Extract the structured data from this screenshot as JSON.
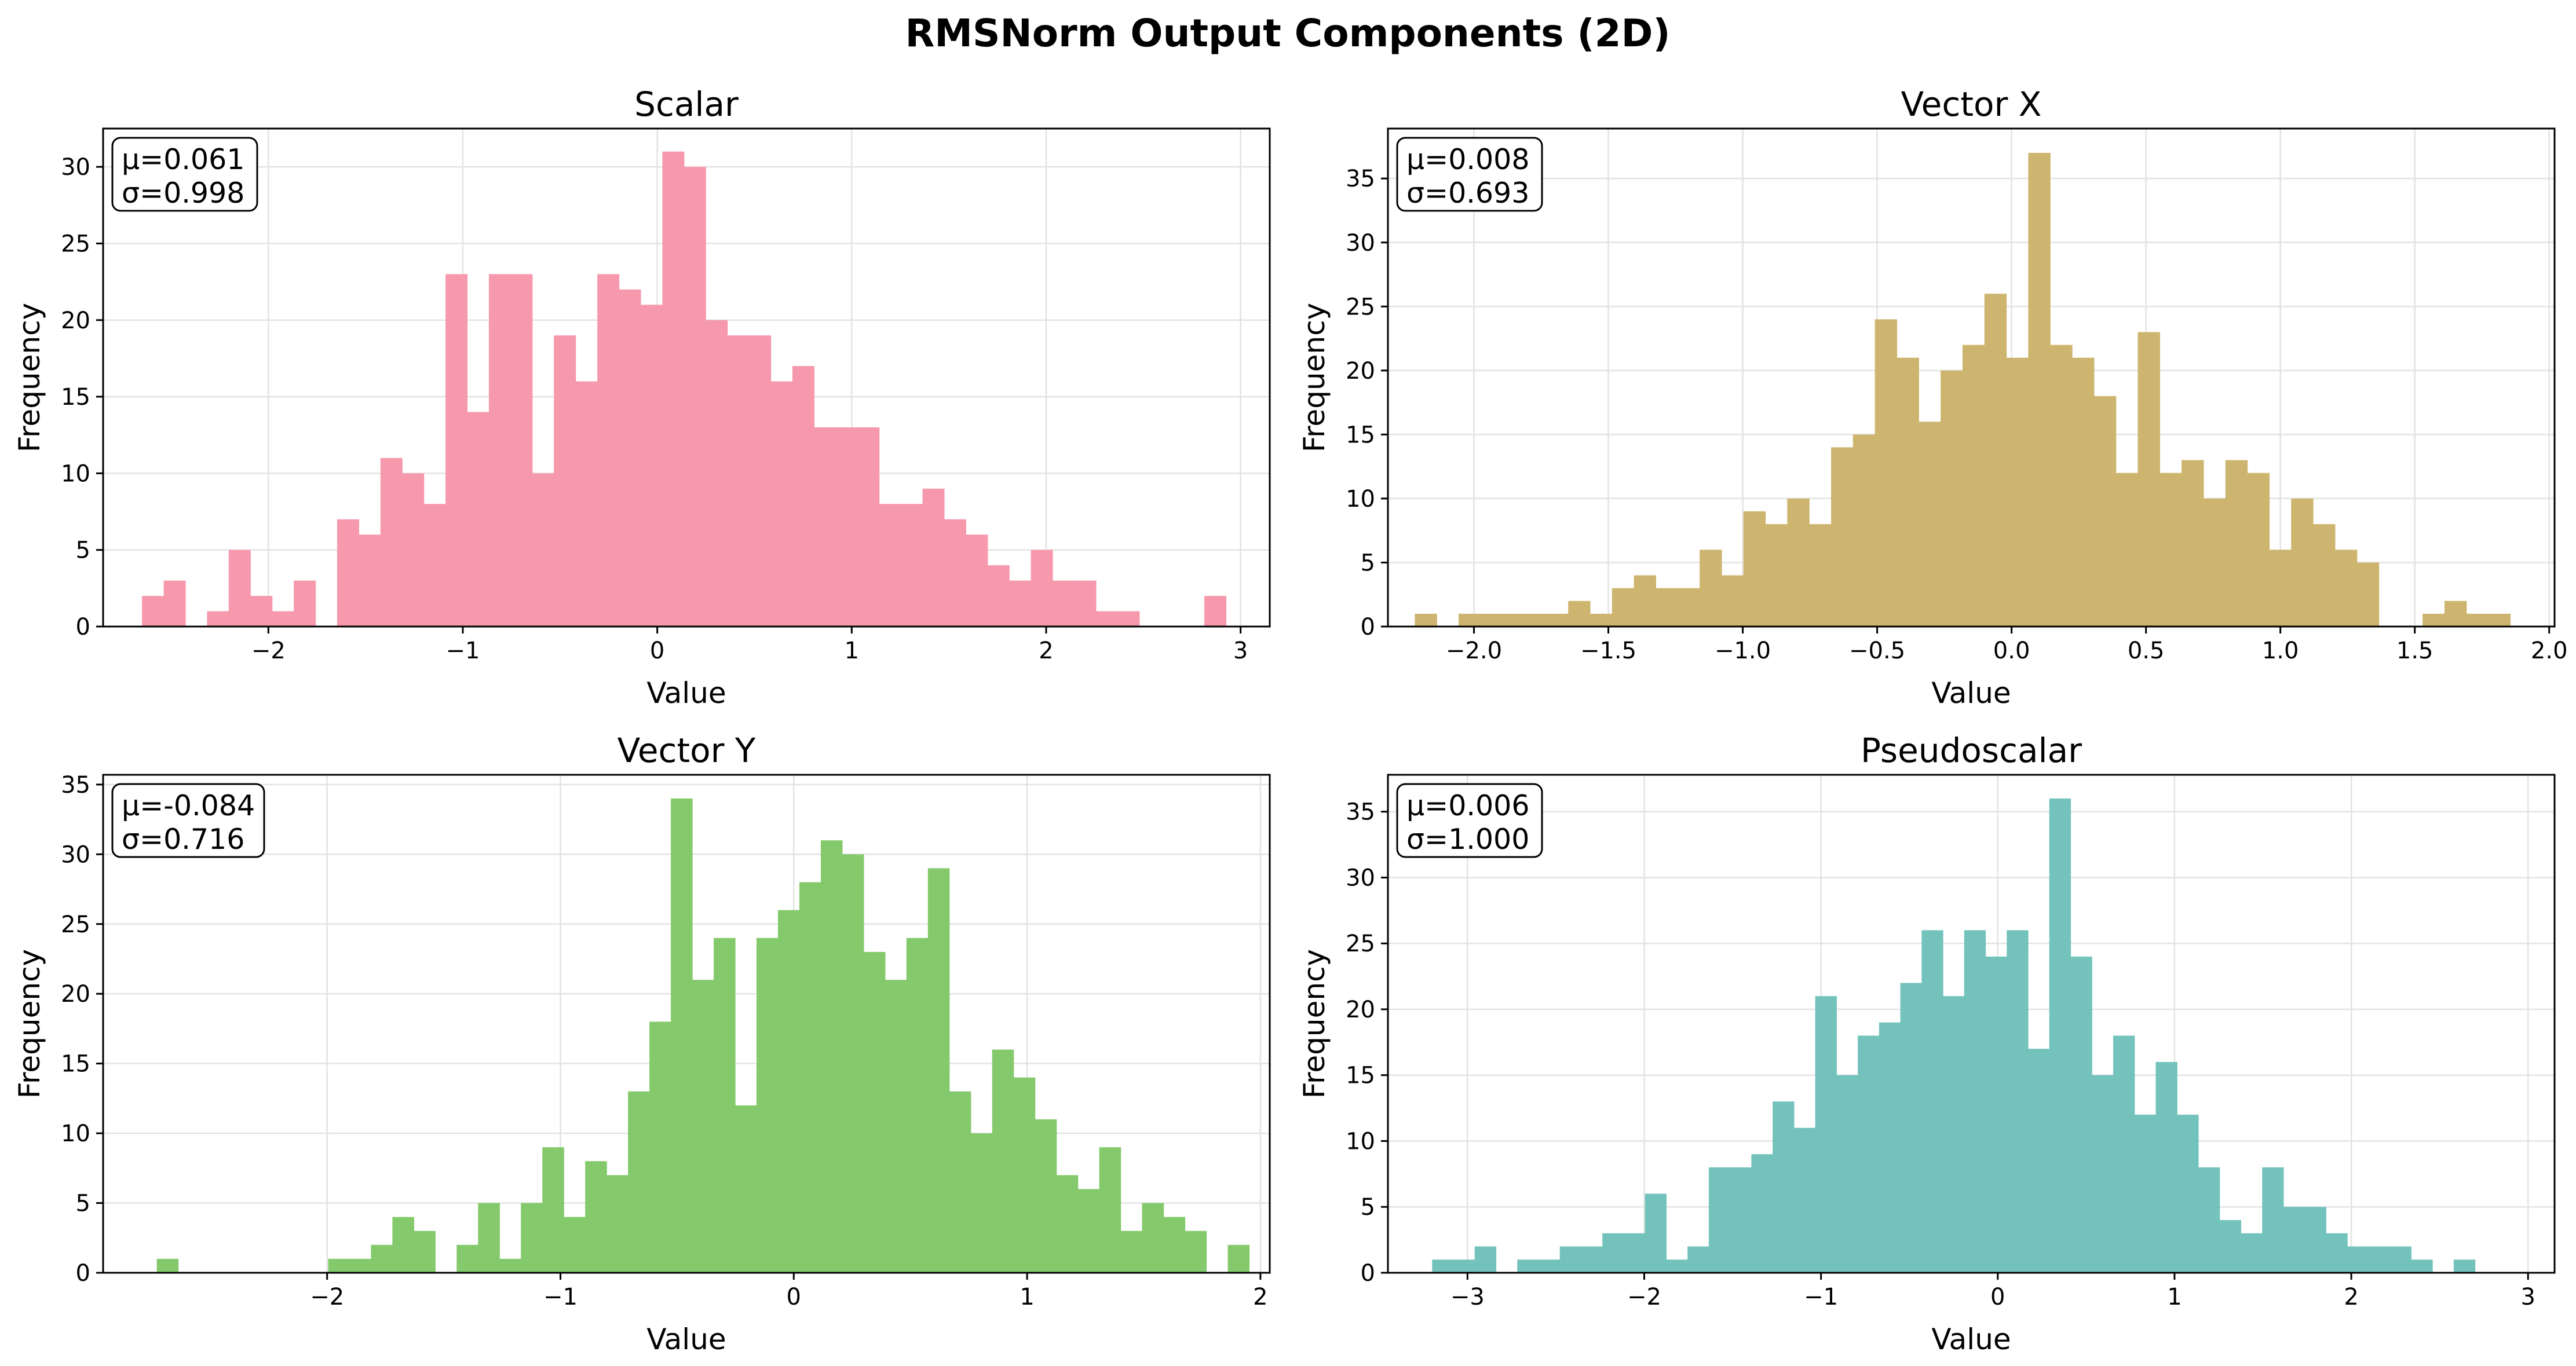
{
  "figure": {
    "title": "RMSNorm Output Components (2D)"
  },
  "chart_data": [
    {
      "type": "bar",
      "title": "Scalar",
      "xlabel": "Value",
      "ylabel": "Frequency",
      "color": "#f799ad",
      "stats": {
        "mean": "μ=0.061",
        "std": "σ=0.998"
      },
      "xlim": [
        -2.85,
        3.15
      ],
      "ylim": [
        0,
        32.5
      ],
      "xticks": [
        -2,
        -1,
        0,
        1,
        2,
        3
      ],
      "xtick_labels": [
        "−2",
        "−1",
        "0",
        "1",
        "2",
        "3"
      ],
      "yticks": [
        0,
        5,
        10,
        15,
        20,
        25,
        30
      ],
      "ytick_labels": [
        "0",
        "5",
        "10",
        "15",
        "20",
        "25",
        "30"
      ],
      "bin_start": -2.65,
      "bin_width": 0.1115,
      "counts": [
        2,
        3,
        0,
        1,
        5,
        2,
        1,
        3,
        0,
        7,
        6,
        11,
        10,
        8,
        23,
        14,
        23,
        23,
        10,
        19,
        16,
        23,
        22,
        21,
        31,
        30,
        20,
        19,
        19,
        16,
        17,
        13,
        13,
        13,
        8,
        8,
        9,
        7,
        6,
        4,
        3,
        5,
        3,
        3,
        1,
        1,
        0,
        0,
        0,
        2
      ]
    },
    {
      "type": "bar",
      "title": "Vector X",
      "xlabel": "Value",
      "ylabel": "Frequency",
      "color": "#ceb56f",
      "stats": {
        "mean": "μ=0.008",
        "std": "σ=0.693"
      },
      "xlim": [
        -2.32,
        2.02
      ],
      "ylim": [
        0,
        38.9
      ],
      "xticks": [
        -2.0,
        -1.5,
        -1.0,
        -0.5,
        0.0,
        0.5,
        1.0,
        1.5,
        2.0
      ],
      "xtick_labels": [
        "−2.0",
        "−1.5",
        "−1.0",
        "−0.5",
        "0.0",
        "0.5",
        "1.0",
        "1.5",
        "2.0"
      ],
      "yticks": [
        0,
        5,
        10,
        15,
        20,
        25,
        30,
        35
      ],
      "ytick_labels": [
        "0",
        "5",
        "10",
        "15",
        "20",
        "25",
        "30",
        "35"
      ],
      "bin_start": -2.22,
      "bin_width": 0.0815,
      "counts": [
        1,
        0,
        1,
        1,
        1,
        1,
        1,
        2,
        1,
        3,
        4,
        3,
        3,
        6,
        4,
        9,
        8,
        10,
        8,
        14,
        15,
        24,
        21,
        16,
        20,
        22,
        26,
        21,
        37,
        22,
        21,
        18,
        12,
        23,
        12,
        13,
        10,
        13,
        12,
        6,
        10,
        8,
        6,
        5,
        0,
        0,
        1,
        2,
        1,
        1
      ]
    },
    {
      "type": "bar",
      "title": "Vector Y",
      "xlabel": "Value",
      "ylabel": "Frequency",
      "color": "#84c96c",
      "stats": {
        "mean": "μ=-0.084",
        "std": "σ=0.716"
      },
      "xlim": [
        -2.96,
        2.04
      ],
      "ylim": [
        0,
        35.7
      ],
      "xticks": [
        -2,
        -1,
        0,
        1,
        2
      ],
      "xtick_labels": [
        "−2",
        "−1",
        "0",
        "1",
        "2"
      ],
      "yticks": [
        0,
        5,
        10,
        15,
        20,
        25,
        30,
        35
      ],
      "ytick_labels": [
        "0",
        "5",
        "10",
        "15",
        "20",
        "25",
        "30",
        "35"
      ],
      "bin_start": -2.73,
      "bin_width": 0.0918,
      "counts": [
        1,
        0,
        0,
        0,
        0,
        0,
        0,
        0,
        1,
        1,
        2,
        4,
        3,
        0,
        2,
        5,
        1,
        5,
        9,
        4,
        8,
        7,
        13,
        18,
        34,
        21,
        24,
        12,
        24,
        26,
        28,
        31,
        30,
        23,
        21,
        24,
        29,
        13,
        10,
        16,
        14,
        11,
        7,
        6,
        9,
        3,
        5,
        4,
        3,
        0,
        2
      ]
    },
    {
      "type": "bar",
      "title": "Pseudoscalar",
      "xlabel": "Value",
      "ylabel": "Frequency",
      "color": "#73c3bc",
      "stats": {
        "mean": "μ=0.006",
        "std": "σ=1.000"
      },
      "xlim": [
        -3.45,
        3.15
      ],
      "ylim": [
        0,
        37.8
      ],
      "xticks": [
        -3,
        -2,
        -1,
        0,
        1,
        2,
        3
      ],
      "xtick_labels": [
        "−3",
        "−2",
        "−1",
        "0",
        "1",
        "2",
        "3"
      ],
      "yticks": [
        0,
        5,
        10,
        15,
        20,
        25,
        30,
        35
      ],
      "ytick_labels": [
        "0",
        "5",
        "10",
        "15",
        "20",
        "25",
        "30",
        "35"
      ],
      "bin_start": -3.2,
      "bin_width": 0.1204,
      "counts": [
        1,
        1,
        2,
        0,
        1,
        1,
        2,
        2,
        3,
        3,
        6,
        1,
        2,
        8,
        8,
        9,
        13,
        11,
        21,
        15,
        18,
        19,
        22,
        26,
        21,
        26,
        24,
        26,
        17,
        36,
        24,
        15,
        18,
        12,
        16,
        12,
        8,
        4,
        3,
        8,
        5,
        5,
        3,
        2,
        2,
        2,
        1,
        0,
        1
      ]
    }
  ]
}
